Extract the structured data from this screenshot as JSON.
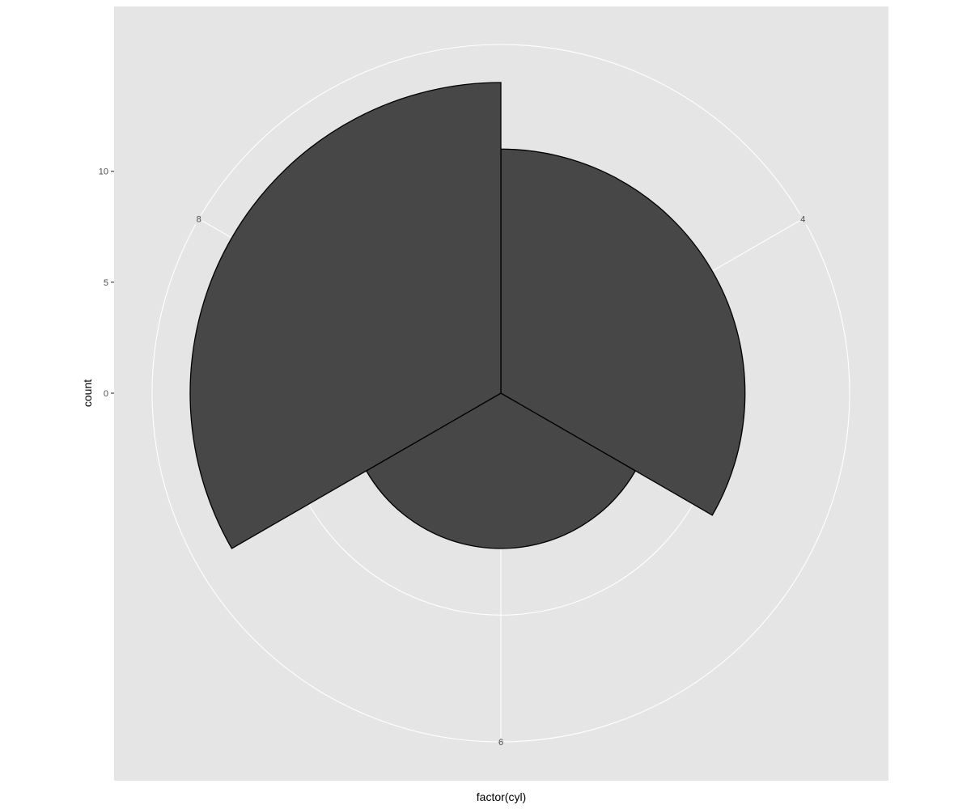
{
  "chart_data": {
    "type": "bar",
    "coord": "polar",
    "categories": [
      "4",
      "6",
      "8"
    ],
    "values": [
      11,
      7,
      14
    ],
    "xlabel": "factor(cyl)",
    "ylabel": "count",
    "yticks": [
      0,
      5,
      10
    ],
    "ylim": [
      0,
      14
    ],
    "grid": true,
    "colors": {
      "panel_background": "#e5e5e5",
      "grid": "#ffffff",
      "bar_fill": "#474747",
      "bar_outline": "#000000",
      "text": "#4d4d4d"
    }
  }
}
